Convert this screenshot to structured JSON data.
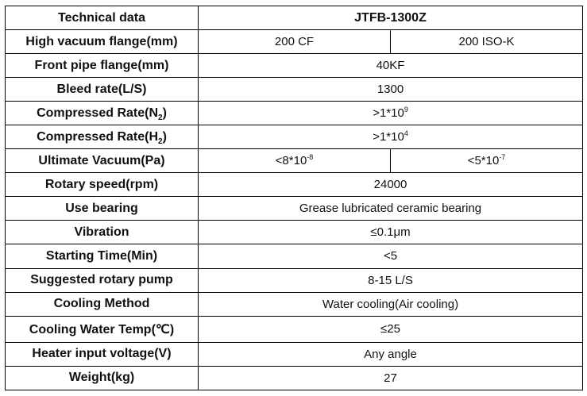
{
  "header": {
    "label": "Technical data",
    "model": "JTFB-1300Z"
  },
  "rows": {
    "high_vacuum_flange": {
      "label": "High vacuum flange(mm)",
      "value_a": "200 CF",
      "value_b": "200 ISO-K"
    },
    "front_pipe_flange": {
      "label": "Front pipe flange(mm)",
      "value": "40KF"
    },
    "bleed_rate": {
      "label": "Bleed rate(L/S)",
      "value": "1300"
    },
    "compressed_rate_n2": {
      "label_pre": "Compressed Rate(N",
      "label_sub": "2",
      "label_post": ")",
      "value_base": ">1*10",
      "value_exp": "9"
    },
    "compressed_rate_h2": {
      "label_pre": "Compressed Rate(H",
      "label_sub": "2",
      "label_post": ")",
      "value_base": ">1*10",
      "value_exp": "4"
    },
    "ultimate_vacuum": {
      "label": "Ultimate Vacuum(Pa)",
      "value_a_base": "<8*10",
      "value_a_exp": "-8",
      "value_b_base": "<5*10",
      "value_b_exp": "-7"
    },
    "rotary_speed": {
      "label": "Rotary speed(rpm)",
      "value": "24000"
    },
    "use_bearing": {
      "label": "Use bearing",
      "value": "Grease lubricated ceramic bearing"
    },
    "vibration": {
      "label": "Vibration",
      "value": "≤0.1μm"
    },
    "starting_time": {
      "label": "Starting Time(Min)",
      "value": "<5"
    },
    "suggested_pump": {
      "label": "Suggested rotary pump",
      "value": "8-15 L/S"
    },
    "cooling_method": {
      "label": "Cooling Method",
      "value": "Water cooling(Air cooling)"
    },
    "cooling_water_temp": {
      "label": "Cooling Water Temp(℃)",
      "value": "≤25"
    },
    "heater_voltage": {
      "label": "Heater input voltage(V)",
      "value": "Any angle"
    },
    "weight": {
      "label": "Weight(kg)",
      "value": "27"
    }
  }
}
